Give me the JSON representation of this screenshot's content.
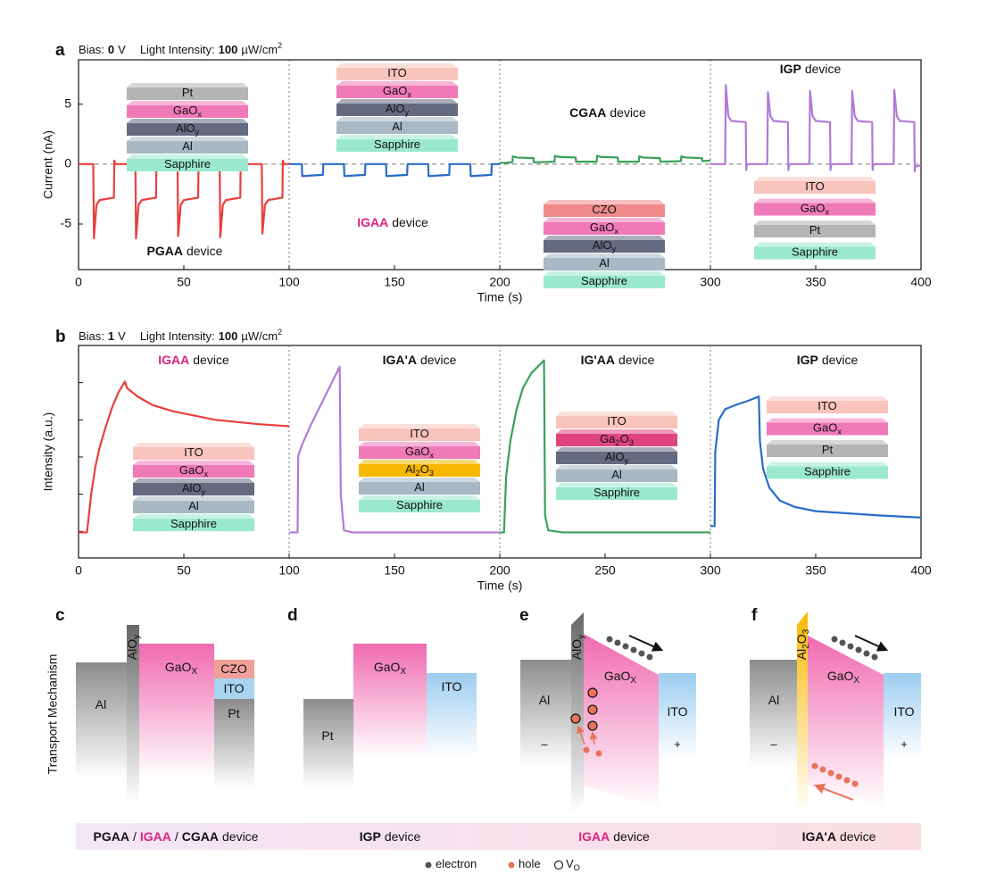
{
  "chart_data": [
    {
      "type": "line",
      "panel": "a",
      "header": {
        "bias_label": "Bias:",
        "bias_value": "0",
        "bias_unit": "V",
        "intensity_label": "Light Intensity:",
        "intensity_value": "100",
        "intensity_unit": "µW/cm",
        "intensity_unit_sup": "2"
      },
      "xlabel": "Time (s)",
      "ylabel": "Current (nA)",
      "xlim": [
        0,
        400
      ],
      "xticks": [
        0,
        50,
        100,
        150,
        200,
        250,
        300,
        350,
        400
      ],
      "ylim": [
        -8.8,
        8.7
      ],
      "yticks": [
        -5,
        0,
        5
      ],
      "reference_line": 0,
      "dividers": [
        100,
        200,
        300
      ],
      "series": [
        {
          "color": "#e8403c",
          "x": [
            0,
            7,
            7.3,
            8.5,
            10,
            16.8,
            17,
            17.5,
            27,
            27.3,
            28.5,
            30,
            36.8,
            37,
            37.5,
            47,
            47.3,
            48.5,
            50,
            56.8,
            57,
            57.5,
            67,
            67.3,
            68.5,
            70,
            76.8,
            77,
            77.5,
            87,
            87.3,
            88.5,
            90,
            96.8,
            97,
            97.5,
            100
          ],
          "values": [
            0,
            0,
            -6.2,
            -3.4,
            -3,
            -2.8,
            0.3,
            0,
            0,
            -6.2,
            -3.4,
            -3,
            -2.8,
            0.3,
            0,
            0,
            -6.0,
            -3.4,
            -3,
            -2.8,
            0.3,
            0,
            0,
            -6.1,
            -3.4,
            -3,
            -2.8,
            0.3,
            0,
            0,
            -5.8,
            -3.4,
            -3,
            -2.8,
            0.3,
            0,
            0
          ]
        },
        {
          "color": "#2a6cc8",
          "x": [
            100,
            106,
            106.2,
            116,
            116.2,
            126,
            126.2,
            136,
            136.2,
            146,
            146.2,
            156,
            156.2,
            166,
            166.2,
            176,
            176.2,
            186,
            186.2,
            196,
            196.2,
            200
          ],
          "values": [
            0,
            0,
            -1.0,
            -0.9,
            0,
            0,
            -1.0,
            -0.9,
            0,
            0,
            -1.0,
            -0.9,
            0,
            0,
            -1.0,
            -0.9,
            0,
            0,
            -1.0,
            -0.9,
            0,
            0
          ]
        },
        {
          "color": "#3aa05a",
          "x": [
            200,
            202,
            206,
            206.2,
            208,
            216,
            216.2,
            226,
            226.2,
            228,
            236,
            236.2,
            246,
            246.2,
            248,
            256,
            256.2,
            266,
            266.2,
            268,
            276,
            276.2,
            286,
            286.2,
            288,
            296,
            296.2,
            300
          ],
          "values": [
            0.1,
            0.1,
            0.15,
            0.65,
            0.55,
            0.5,
            0.15,
            0.2,
            0.7,
            0.6,
            0.55,
            0.2,
            0.2,
            0.7,
            0.6,
            0.55,
            0.2,
            0.2,
            0.65,
            0.55,
            0.5,
            0.2,
            0.25,
            0.65,
            0.55,
            0.5,
            0.25,
            0.3
          ]
        },
        {
          "color": "#b07ad8",
          "x": [
            300,
            307,
            307.3,
            308.5,
            310,
            316.8,
            317,
            317.3,
            318,
            327,
            327.3,
            328.5,
            330,
            336.8,
            337,
            337.3,
            338,
            347,
            347.3,
            348.5,
            350,
            356.8,
            357,
            357.3,
            358,
            367,
            367.3,
            368.5,
            370,
            376.8,
            377,
            377.3,
            378,
            387,
            387.3,
            388.5,
            390,
            396.8,
            397,
            397.3,
            400
          ],
          "values": [
            0,
            0,
            6.6,
            4,
            3.6,
            3.5,
            -0.5,
            -0.1,
            0,
            0,
            6.0,
            4,
            3.6,
            3.5,
            -0.5,
            -0.1,
            0,
            0,
            6.1,
            4,
            3.6,
            3.5,
            -0.5,
            -0.1,
            0,
            0,
            6.1,
            4,
            3.6,
            3.5,
            -0.5,
            -0.1,
            0,
            0,
            6.2,
            4,
            3.6,
            3.5,
            -0.6,
            -0.2,
            -0.1
          ]
        }
      ],
      "devices": [
        {
          "name": "PGAA",
          "suffix": "device",
          "name_color": "#111",
          "layers": [
            {
              "label": [
                "Pt"
              ],
              "color": "#b4b4b4"
            },
            {
              "label": [
                "GaO",
                "x"
              ],
              "color": "#f07ab8"
            },
            {
              "label": [
                "AlO",
                "y"
              ],
              "color": "#666a80"
            },
            {
              "label": [
                "Al"
              ],
              "color": "#a8b8c4"
            },
            {
              "label": [
                "Sapphire"
              ],
              "color": "#9ae8d0"
            }
          ]
        },
        {
          "name": "IGAA",
          "suffix": "device",
          "name_color": "#e0207f",
          "layers": [
            {
              "label": [
                "ITO"
              ],
              "color": "#f8c4bc"
            },
            {
              "label": [
                "GaO",
                "x"
              ],
              "color": "#f07ab8"
            },
            {
              "label": [
                "AlO",
                "y"
              ],
              "color": "#666a80"
            },
            {
              "label": [
                "Al"
              ],
              "color": "#a8b8c4"
            },
            {
              "label": [
                "Sapphire"
              ],
              "color": "#9ae8d0"
            }
          ]
        },
        {
          "name": "CGAA",
          "suffix": "device",
          "name_color": "#111",
          "layers": [
            {
              "label": [
                "CZO"
              ],
              "color": "#f08a8a"
            },
            {
              "label": [
                "GaO",
                "x"
              ],
              "color": "#f07ab8"
            },
            {
              "label": [
                "AlO",
                "y"
              ],
              "color": "#666a80"
            },
            {
              "label": [
                "Al"
              ],
              "color": "#a8b8c4"
            },
            {
              "label": [
                "Sapphire"
              ],
              "color": "#9ae8d0"
            }
          ]
        },
        {
          "name": "IGP",
          "suffix": "device",
          "name_color": "#111",
          "layers": [
            {
              "label": [
                "ITO"
              ],
              "color": "#f8c4bc"
            },
            {
              "label": [
                "GaO",
                "x"
              ],
              "color": "#f07ab8"
            },
            {
              "label": [
                "Pt"
              ],
              "color": "#b4b4b4"
            },
            {
              "label": [
                "Sapphire"
              ],
              "color": "#9ae8d0"
            }
          ]
        }
      ]
    },
    {
      "type": "line",
      "panel": "b",
      "header": {
        "bias_label": "Bias:",
        "bias_value": "1",
        "bias_unit": "V",
        "intensity_label": "Light Intensity:",
        "intensity_value": "100",
        "intensity_unit": "µW/cm",
        "intensity_unit_sup": "2"
      },
      "xlabel": "Time (s)",
      "ylabel": "Intensity (a.u.)",
      "xlim": [
        0,
        400
      ],
      "xticks": [
        0,
        50,
        100,
        150,
        200,
        250,
        300,
        350,
        400
      ],
      "ylim": [
        0,
        1
      ],
      "ytick_marks": [
        0.125,
        0.3,
        0.475,
        0.65,
        0.825
      ],
      "dividers": [
        100,
        200,
        300
      ],
      "series": [
        {
          "color": "#e8403c",
          "x": [
            0,
            4,
            6,
            8,
            10,
            13,
            16,
            19,
            22,
            23,
            28,
            35,
            45,
            55,
            65,
            75,
            85,
            100
          ],
          "values": [
            0.12,
            0.12,
            0.3,
            0.43,
            0.52,
            0.62,
            0.71,
            0.78,
            0.83,
            0.8,
            0.76,
            0.72,
            0.69,
            0.67,
            0.65,
            0.64,
            0.63,
            0.62
          ]
        },
        {
          "color": "#b07ad8",
          "x": [
            100,
            104,
            104.3,
            106,
            110,
            115,
            120,
            124,
            124.5,
            126,
            130,
            200
          ],
          "values": [
            0.12,
            0.12,
            0.48,
            0.53,
            0.62,
            0.72,
            0.82,
            0.9,
            0.3,
            0.13,
            0.12,
            0.12
          ]
        },
        {
          "color": "#3aa05a",
          "x": [
            200,
            202,
            203,
            205,
            208,
            211,
            215,
            218,
            221,
            221.5,
            223,
            230,
            300
          ],
          "values": [
            0.12,
            0.12,
            0.38,
            0.55,
            0.7,
            0.8,
            0.87,
            0.9,
            0.93,
            0.2,
            0.13,
            0.12,
            0.12
          ]
        },
        {
          "color": "#2a6cc8",
          "x": [
            300,
            302,
            302.3,
            304,
            307,
            312,
            318,
            323,
            323.5,
            325,
            328,
            333,
            340,
            350,
            365,
            380,
            400
          ],
          "values": [
            0.15,
            0.15,
            0.5,
            0.65,
            0.7,
            0.72,
            0.74,
            0.76,
            0.55,
            0.42,
            0.33,
            0.27,
            0.24,
            0.22,
            0.21,
            0.2,
            0.19
          ]
        }
      ],
      "devices": [
        {
          "name": "IGAA",
          "suffix": "device",
          "name_color": "#e0207f",
          "layers": [
            {
              "label": [
                "ITO"
              ],
              "color": "#f8c4bc"
            },
            {
              "label": [
                "GaO",
                "x"
              ],
              "color": "#f07ab8"
            },
            {
              "label": [
                "AlO",
                "y"
              ],
              "color": "#666a80"
            },
            {
              "label": [
                "Al"
              ],
              "color": "#a8b8c4"
            },
            {
              "label": [
                "Sapphire"
              ],
              "color": "#9ae8d0"
            }
          ]
        },
        {
          "name": "IGA'A",
          "suffix": "device",
          "name_color": "#111",
          "layers": [
            {
              "label": [
                "ITO"
              ],
              "color": "#f8c4bc"
            },
            {
              "label": [
                "GaO",
                "x"
              ],
              "color": "#f07ab8"
            },
            {
              "label": [
                "Al",
                "2",
                "O",
                "3"
              ],
              "color": "#f8b800"
            },
            {
              "label": [
                "Al"
              ],
              "color": "#a8b8c4"
            },
            {
              "label": [
                "Sapphire"
              ],
              "color": "#9ae8d0"
            }
          ]
        },
        {
          "name": "IG'AA",
          "suffix": "device",
          "name_color": "#111",
          "layers": [
            {
              "label": [
                "ITO"
              ],
              "color": "#f8c4bc"
            },
            {
              "label": [
                "Ga",
                "2",
                "O",
                "3"
              ],
              "color": "#e0457e"
            },
            {
              "label": [
                "AlO",
                "y"
              ],
              "color": "#666a80"
            },
            {
              "label": [
                "Al"
              ],
              "color": "#a8b8c4"
            },
            {
              "label": [
                "Sapphire"
              ],
              "color": "#9ae8d0"
            }
          ]
        },
        {
          "name": "IGP",
          "suffix": "device",
          "name_color": "#111",
          "layers": [
            {
              "label": [
                "ITO"
              ],
              "color": "#f8c4bc"
            },
            {
              "label": [
                "GaO",
                "x"
              ],
              "color": "#f07ab8"
            },
            {
              "label": [
                "Pt"
              ],
              "color": "#b4b4b4"
            },
            {
              "label": [
                "Sapphire"
              ],
              "color": "#9ae8d0"
            }
          ]
        }
      ]
    }
  ],
  "band_diagrams": {
    "side_label": "Transport Mechanism",
    "panels": [
      {
        "label": "c",
        "texts": [
          [
            "Al"
          ],
          [
            "AlO",
            "y"
          ],
          [
            "GaO",
            "X"
          ],
          [
            "CZO"
          ],
          [
            "ITO"
          ],
          [
            "Pt"
          ]
        ]
      },
      {
        "label": "d",
        "texts": [
          [
            "Pt"
          ],
          [
            "GaO",
            "X"
          ],
          [
            "ITO"
          ]
        ]
      },
      {
        "label": "e",
        "texts": [
          [
            "Al"
          ],
          [
            "AlO",
            "y"
          ],
          [
            "GaO",
            "X"
          ],
          [
            "ITO"
          ],
          [
            "–"
          ],
          [
            "+"
          ]
        ]
      },
      {
        "label": "f",
        "texts": [
          [
            "Al"
          ],
          [
            "Al",
            "2",
            "O",
            "3"
          ],
          [
            "GaO",
            "X"
          ],
          [
            "ITO"
          ],
          [
            "–"
          ],
          [
            "+"
          ]
        ]
      }
    ]
  },
  "footer": [
    [
      {
        "text": "PGAA",
        "bold": true
      },
      {
        "text": "/"
      },
      {
        "text": "IGAA",
        "bold": true,
        "color": "#e0207f"
      },
      {
        "text": "/"
      },
      {
        "text": "CGAA",
        "bold": true
      },
      {
        "text": "device"
      }
    ],
    [
      {
        "text": "IGP",
        "bold": true
      },
      {
        "text": "device"
      }
    ],
    [
      {
        "text": "IGAA",
        "bold": true,
        "color": "#e0207f"
      },
      {
        "text": "device"
      }
    ],
    [
      {
        "text": "IGA'A",
        "bold": true
      },
      {
        "text": "device"
      }
    ]
  ],
  "legend": [
    {
      "label": [
        "electron"
      ],
      "marker": "dot",
      "color": "#555555"
    },
    {
      "label": [
        "hole"
      ],
      "marker": "dot",
      "color": "#e8735a"
    },
    {
      "label": [
        "V",
        "O"
      ],
      "marker": "circle",
      "color": "#222222"
    }
  ]
}
